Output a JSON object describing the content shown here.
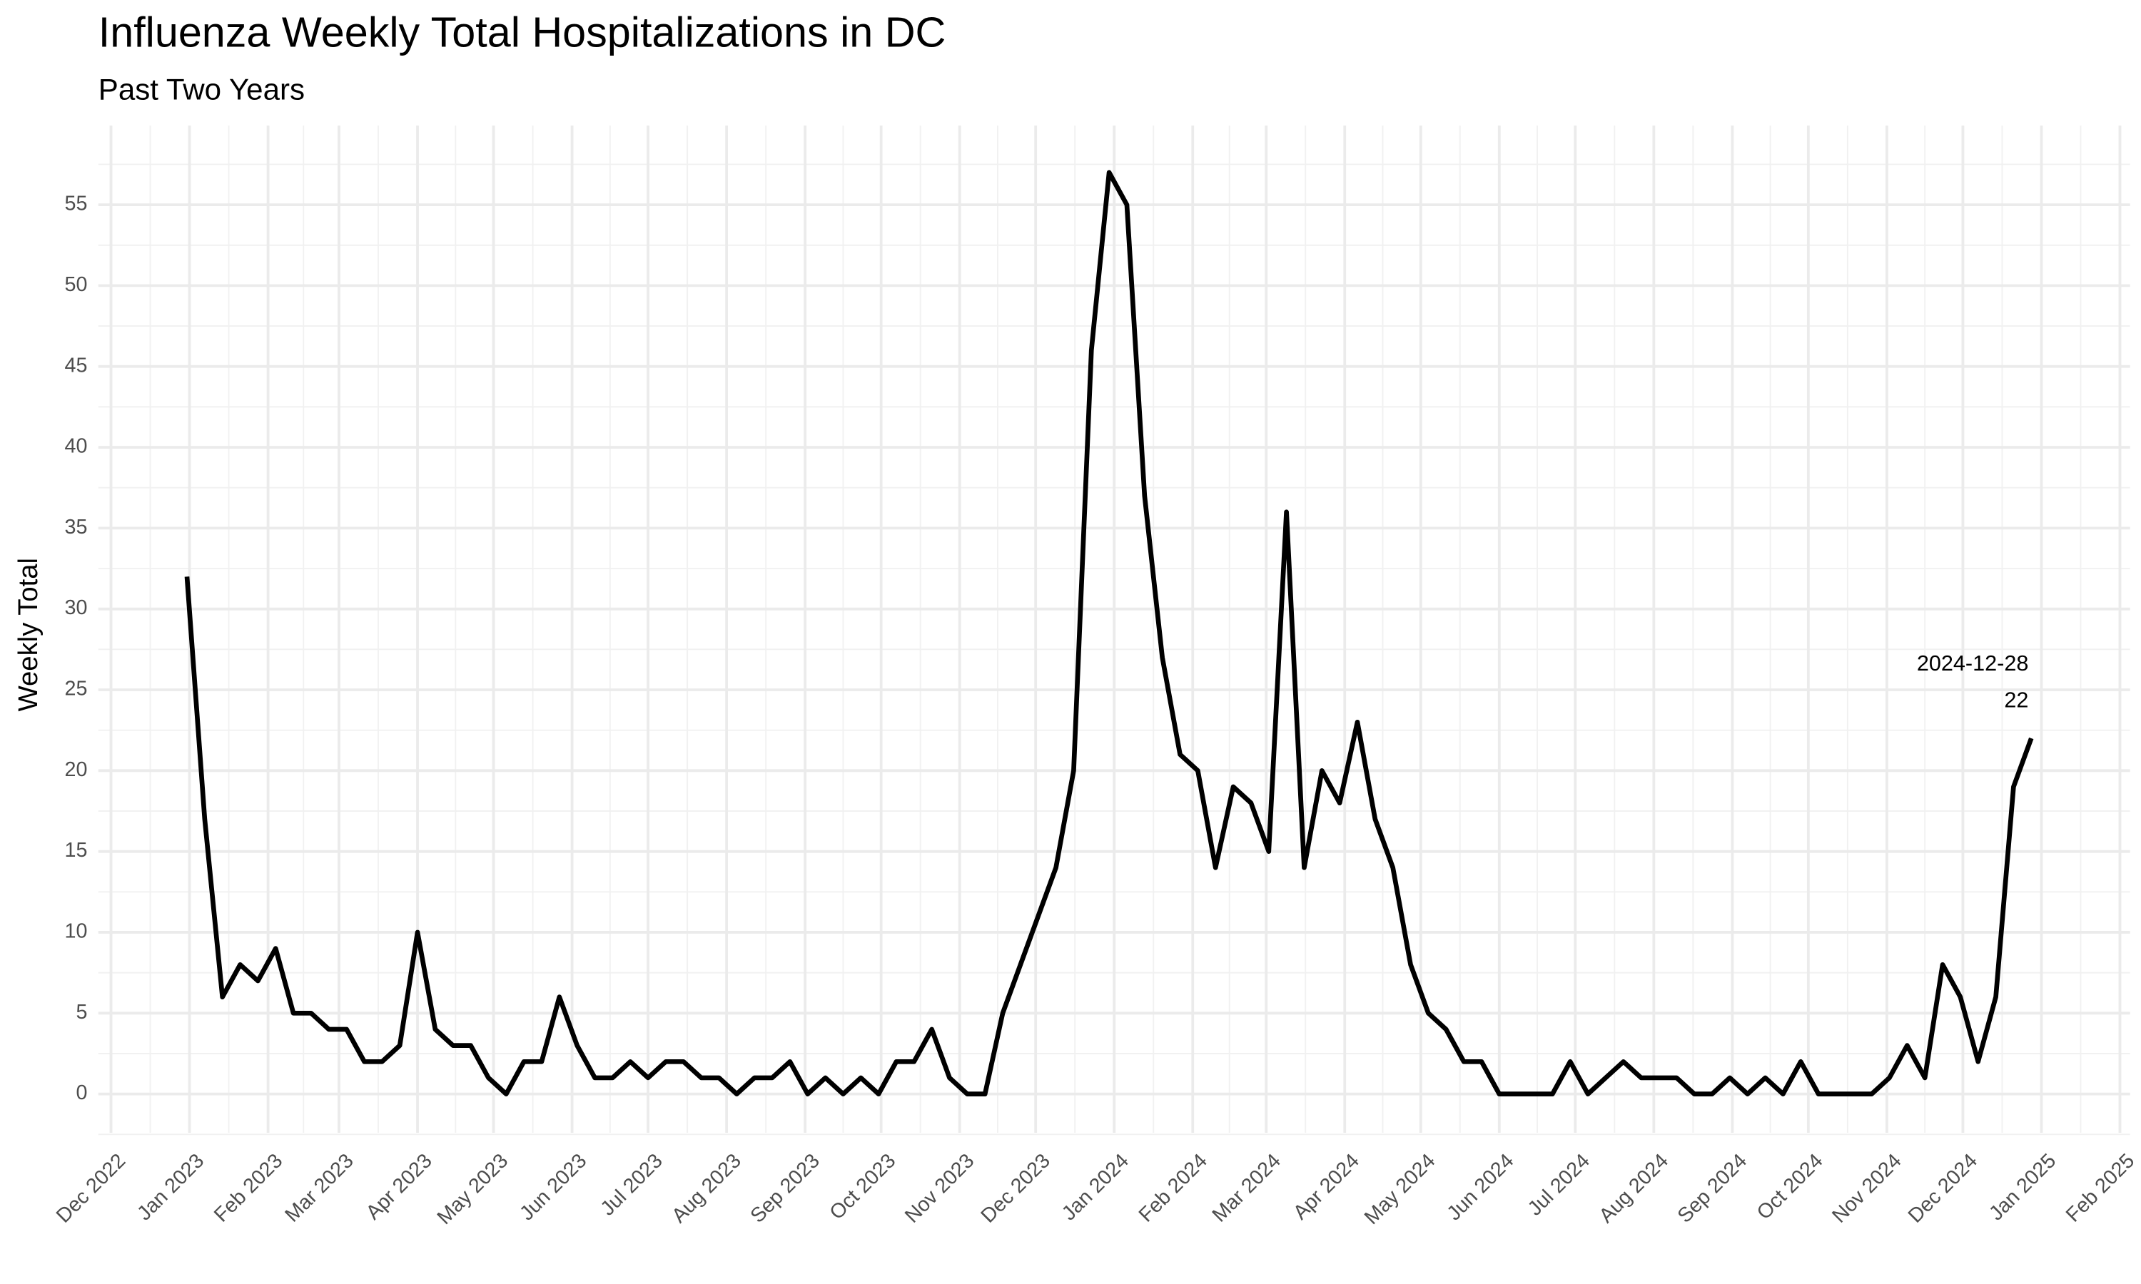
{
  "chart_data": {
    "type": "line",
    "title": "Influenza Weekly Total Hospitalizations in DC",
    "subtitle": "Past Two Years",
    "y_label": "Weekly Total",
    "x": [
      "2022-12-31",
      "2023-01-07",
      "2023-01-14",
      "2023-01-21",
      "2023-01-28",
      "2023-02-04",
      "2023-02-11",
      "2023-02-18",
      "2023-02-25",
      "2023-03-04",
      "2023-03-11",
      "2023-03-18",
      "2023-03-25",
      "2023-04-01",
      "2023-04-08",
      "2023-04-15",
      "2023-04-22",
      "2023-04-29",
      "2023-05-06",
      "2023-05-13",
      "2023-05-20",
      "2023-05-27",
      "2023-06-03",
      "2023-06-10",
      "2023-06-17",
      "2023-06-24",
      "2023-07-01",
      "2023-07-08",
      "2023-07-15",
      "2023-07-22",
      "2023-07-29",
      "2023-08-05",
      "2023-08-12",
      "2023-08-19",
      "2023-08-26",
      "2023-09-02",
      "2023-09-09",
      "2023-09-16",
      "2023-09-23",
      "2023-09-30",
      "2023-10-07",
      "2023-10-14",
      "2023-10-21",
      "2023-10-28",
      "2023-11-04",
      "2023-11-11",
      "2023-11-18",
      "2023-11-25",
      "2023-12-02",
      "2023-12-09",
      "2023-12-16",
      "2023-12-23",
      "2023-12-30",
      "2024-01-06",
      "2024-01-13",
      "2024-01-20",
      "2024-01-27",
      "2024-02-03",
      "2024-02-10",
      "2024-02-17",
      "2024-02-24",
      "2024-03-02",
      "2024-03-09",
      "2024-03-16",
      "2024-03-23",
      "2024-03-30",
      "2024-04-06",
      "2024-04-13",
      "2024-04-20",
      "2024-04-27",
      "2024-05-04",
      "2024-05-11",
      "2024-05-18",
      "2024-05-25",
      "2024-06-01",
      "2024-06-08",
      "2024-06-15",
      "2024-06-22",
      "2024-06-29",
      "2024-07-06",
      "2024-07-13",
      "2024-07-20",
      "2024-07-27",
      "2024-08-03",
      "2024-08-10",
      "2024-08-17",
      "2024-08-24",
      "2024-08-31",
      "2024-09-07",
      "2024-09-14",
      "2024-09-21",
      "2024-09-28",
      "2024-10-05",
      "2024-10-12",
      "2024-10-19",
      "2024-10-26",
      "2024-11-02",
      "2024-11-09",
      "2024-11-16",
      "2024-11-23",
      "2024-11-30",
      "2024-12-07",
      "2024-12-14",
      "2024-12-21",
      "2024-12-28"
    ],
    "series": [
      {
        "name": "Weekly Total",
        "color": "#000000",
        "values": [
          32,
          17,
          6,
          8,
          7,
          9,
          5,
          5,
          4,
          4,
          2,
          2,
          3,
          10,
          4,
          3,
          3,
          1,
          0,
          2,
          2,
          6,
          3,
          1,
          1,
          2,
          1,
          2,
          2,
          1,
          1,
          0,
          1,
          1,
          2,
          0,
          1,
          0,
          1,
          0,
          2,
          2,
          4,
          1,
          0,
          0,
          5,
          8,
          11,
          14,
          20,
          46,
          57,
          55,
          37,
          27,
          21,
          20,
          14,
          19,
          18,
          15,
          36,
          14,
          20,
          18,
          23,
          17,
          14,
          8,
          5,
          4,
          2,
          2,
          0,
          0,
          0,
          0,
          2,
          0,
          1,
          2,
          1,
          1,
          1,
          0,
          0,
          1,
          0,
          1,
          0,
          2,
          0,
          0,
          0,
          0,
          1,
          3,
          1,
          8,
          6,
          2,
          6,
          19,
          22
        ]
      }
    ],
    "xlim": [
      "2022-11-26",
      "2025-02-05"
    ],
    "xticks": [
      {
        "value": "2022-12-01",
        "label": "Dec 2022"
      },
      {
        "value": "2023-01-01",
        "label": "Jan 2023"
      },
      {
        "value": "2023-02-01",
        "label": "Feb 2023"
      },
      {
        "value": "2023-03-01",
        "label": "Mar 2023"
      },
      {
        "value": "2023-04-01",
        "label": "Apr 2023"
      },
      {
        "value": "2023-05-01",
        "label": "May 2023"
      },
      {
        "value": "2023-06-01",
        "label": "Jun 2023"
      },
      {
        "value": "2023-07-01",
        "label": "Jul 2023"
      },
      {
        "value": "2023-08-01",
        "label": "Aug 2023"
      },
      {
        "value": "2023-09-01",
        "label": "Sep 2023"
      },
      {
        "value": "2023-10-01",
        "label": "Oct 2023"
      },
      {
        "value": "2023-11-01",
        "label": "Nov 2023"
      },
      {
        "value": "2023-12-01",
        "label": "Dec 2023"
      },
      {
        "value": "2024-01-01",
        "label": "Jan 2024"
      },
      {
        "value": "2024-02-01",
        "label": "Feb 2024"
      },
      {
        "value": "2024-03-01",
        "label": "Mar 2024"
      },
      {
        "value": "2024-04-01",
        "label": "Apr 2024"
      },
      {
        "value": "2024-05-01",
        "label": "May 2024"
      },
      {
        "value": "2024-06-01",
        "label": "Jun 2024"
      },
      {
        "value": "2024-07-01",
        "label": "Jul 2024"
      },
      {
        "value": "2024-08-01",
        "label": "Aug 2024"
      },
      {
        "value": "2024-09-01",
        "label": "Sep 2024"
      },
      {
        "value": "2024-10-01",
        "label": "Oct 2024"
      },
      {
        "value": "2024-11-01",
        "label": "Nov 2024"
      },
      {
        "value": "2024-12-01",
        "label": "Dec 2024"
      },
      {
        "value": "2025-01-01",
        "label": "Jan 2025"
      },
      {
        "value": "2025-02-01",
        "label": "Feb 2025"
      }
    ],
    "ylim": [
      -2.4,
      59.9
    ],
    "yticks": [
      0,
      5,
      10,
      15,
      20,
      25,
      30,
      35,
      40,
      45,
      50,
      55
    ],
    "grid": true
  }
}
